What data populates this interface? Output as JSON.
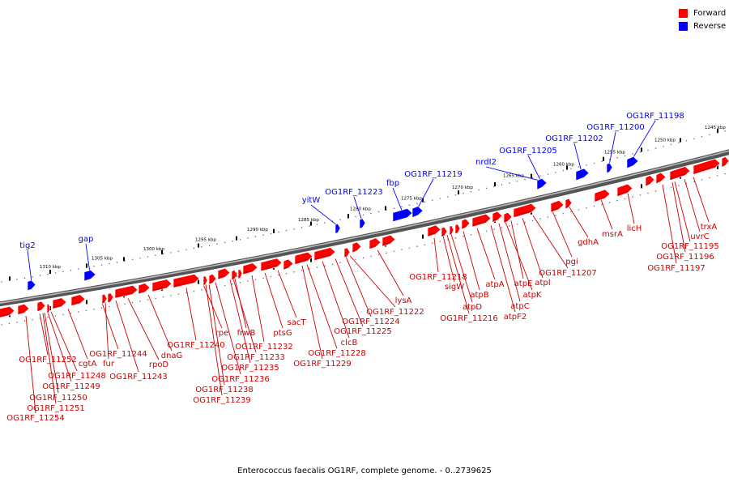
{
  "legend": {
    "forward_label": "Forward",
    "reverse_label": "Reverse",
    "forward_color": "#ff0000",
    "reverse_color": "#0000ff"
  },
  "caption": "Enterococcus faecalis OG1RF, complete genome. - 0..2739625",
  "scale_labels": [
    "1310 kbp",
    "1305 kbp",
    "1300 kbp",
    "1295 kbp",
    "1290 kbp",
    "1285 kbp",
    "1280 kbp",
    "1275 kbp",
    "1270 kbp",
    "1265 kbp",
    "1260 kbp",
    "1255 kbp",
    "1250 kbp",
    "1245 kbp"
  ],
  "reverse_genes": [
    "tig2",
    "gap",
    "yitW",
    "OG1RF_11223",
    "fbp",
    "OG1RF_11219",
    "nrdI2",
    "OG1RF_11205",
    "OG1RF_11202",
    "OG1RF_11200",
    "OG1RF_11198"
  ],
  "forward_genes": [
    "OG1RF_11252",
    "cgtA",
    "OG1RF_11248",
    "OG1RF_11249",
    "OG1RF_11250",
    "OG1RF_11251",
    "OG1RF_11254",
    "OG1RF_11244",
    "fur",
    "OG1RF_11243",
    "rpoD",
    "dnaG",
    "OG1RF_11240",
    "rpe",
    "frwB",
    "OG1RF_11232",
    "OG1RF_11233",
    "OG1RF_11235",
    "OG1RF_11236",
    "OG1RF_11238",
    "OG1RF_11239",
    "ptsG",
    "sacT",
    "clcB",
    "OG1RF_11228",
    "OG1RF_11229",
    "OG1RF_11225",
    "OG1RF_11224",
    "OG1RF_11222",
    "lysA",
    "OG1RF_11218",
    "sigW",
    "atpD",
    "OG1RF_11216",
    "atpB",
    "atpA",
    "atpF2",
    "atpC",
    "atpK",
    "atpE",
    "atpI",
    "OG1RF_11207",
    "pgi",
    "gdhA",
    "msrA",
    "licH",
    "OG1RF_11197",
    "OG1RF_11196",
    "OG1RF_11195",
    "uvrC",
    "trxA"
  ]
}
